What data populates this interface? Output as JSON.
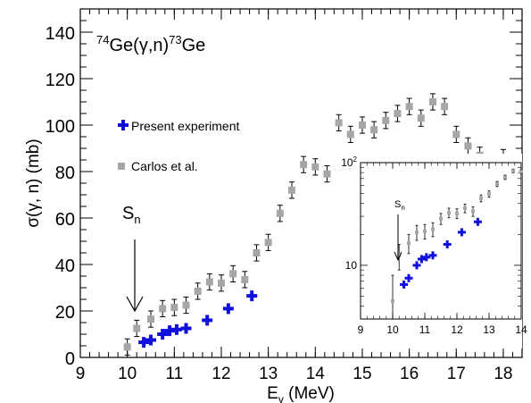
{
  "chart_data": {
    "type": "scatter",
    "reaction": {
      "mass_in": "74",
      "base_in": "Ge",
      "paren": "(γ,n)",
      "mass_out": "73",
      "base_out": "Ge"
    },
    "xlabel": {
      "main": "E",
      "sub": "γ",
      "unit": " (MeV)"
    },
    "ylabel": "σ(γ, n) (mb)",
    "xlim": [
      9,
      18.4
    ],
    "ylim": [
      0,
      150
    ],
    "xticks": [
      9,
      10,
      11,
      12,
      13,
      14,
      15,
      16,
      17,
      18
    ],
    "yticks": [
      0,
      20,
      40,
      60,
      80,
      100,
      120,
      140
    ],
    "sn_label": {
      "main": "S",
      "sub": "n"
    },
    "sn_energy": 10.2,
    "legend": [
      {
        "label": "Present experiment",
        "series": "present",
        "color": "#1010dd",
        "marker": "cross"
      },
      {
        "label": "Carlos et al.",
        "series": "carlos",
        "color": "#a6a6a6",
        "marker": "square"
      }
    ],
    "series": [
      {
        "name": "present",
        "color": "#1010dd",
        "marker": "cross",
        "x": [
          10.35,
          10.5,
          10.75,
          10.9,
          11.05,
          11.25,
          11.7,
          12.15,
          12.65
        ],
        "y": [
          6.5,
          7.5,
          10,
          11.5,
          12,
          12.5,
          16,
          21,
          26.5
        ],
        "xerr": [
          0.1,
          0.1,
          0.1,
          0.1,
          0.1,
          0.1,
          0.1,
          0.1,
          0.1
        ]
      },
      {
        "name": "carlos",
        "color": "#a6a6a6",
        "marker": "square",
        "x": [
          10.0,
          10.2,
          10.5,
          10.75,
          11.0,
          11.25,
          11.5,
          11.75,
          12.0,
          12.25,
          12.5,
          12.75,
          13.0,
          13.25,
          13.5,
          13.75,
          14.0,
          14.25,
          14.5,
          14.75,
          15.0,
          15.25,
          15.5,
          15.75,
          16.0,
          16.25,
          16.5,
          16.75,
          17.0,
          17.25,
          17.5,
          17.75,
          18.0
        ],
        "y": [
          4.5,
          12.5,
          16.5,
          21,
          21.5,
          22.5,
          28.5,
          32.5,
          32,
          36,
          33.5,
          45,
          49.5,
          62,
          72,
          83,
          82,
          79,
          101,
          96,
          100,
          98,
          102,
          105,
          108,
          103,
          110,
          108,
          96,
          91,
          87,
          83,
          86
        ],
        "yerr": [
          3.5,
          3.5,
          3.5,
          3.5,
          3.5,
          3.5,
          3.5,
          3.5,
          3.5,
          3.5,
          3.5,
          3.5,
          3.5,
          3.5,
          3.5,
          3.5,
          3.5,
          3.5,
          3.5,
          3.5,
          3.5,
          3.5,
          3.5,
          3.5,
          3.5,
          3.5,
          3.5,
          3.5,
          3.5,
          3.5,
          3.5,
          3.5,
          3.5
        ]
      }
    ],
    "inset": {
      "type": "scatter",
      "yscale": "log",
      "xlim": [
        9,
        14
      ],
      "ylim": [
        3,
        100
      ],
      "xticks": [
        9,
        10,
        11,
        12,
        13,
        14
      ],
      "yticks": [
        10,
        100
      ],
      "sn_label": {
        "main": "S",
        "sub": "n"
      },
      "sn_energy": 10.2
    }
  }
}
